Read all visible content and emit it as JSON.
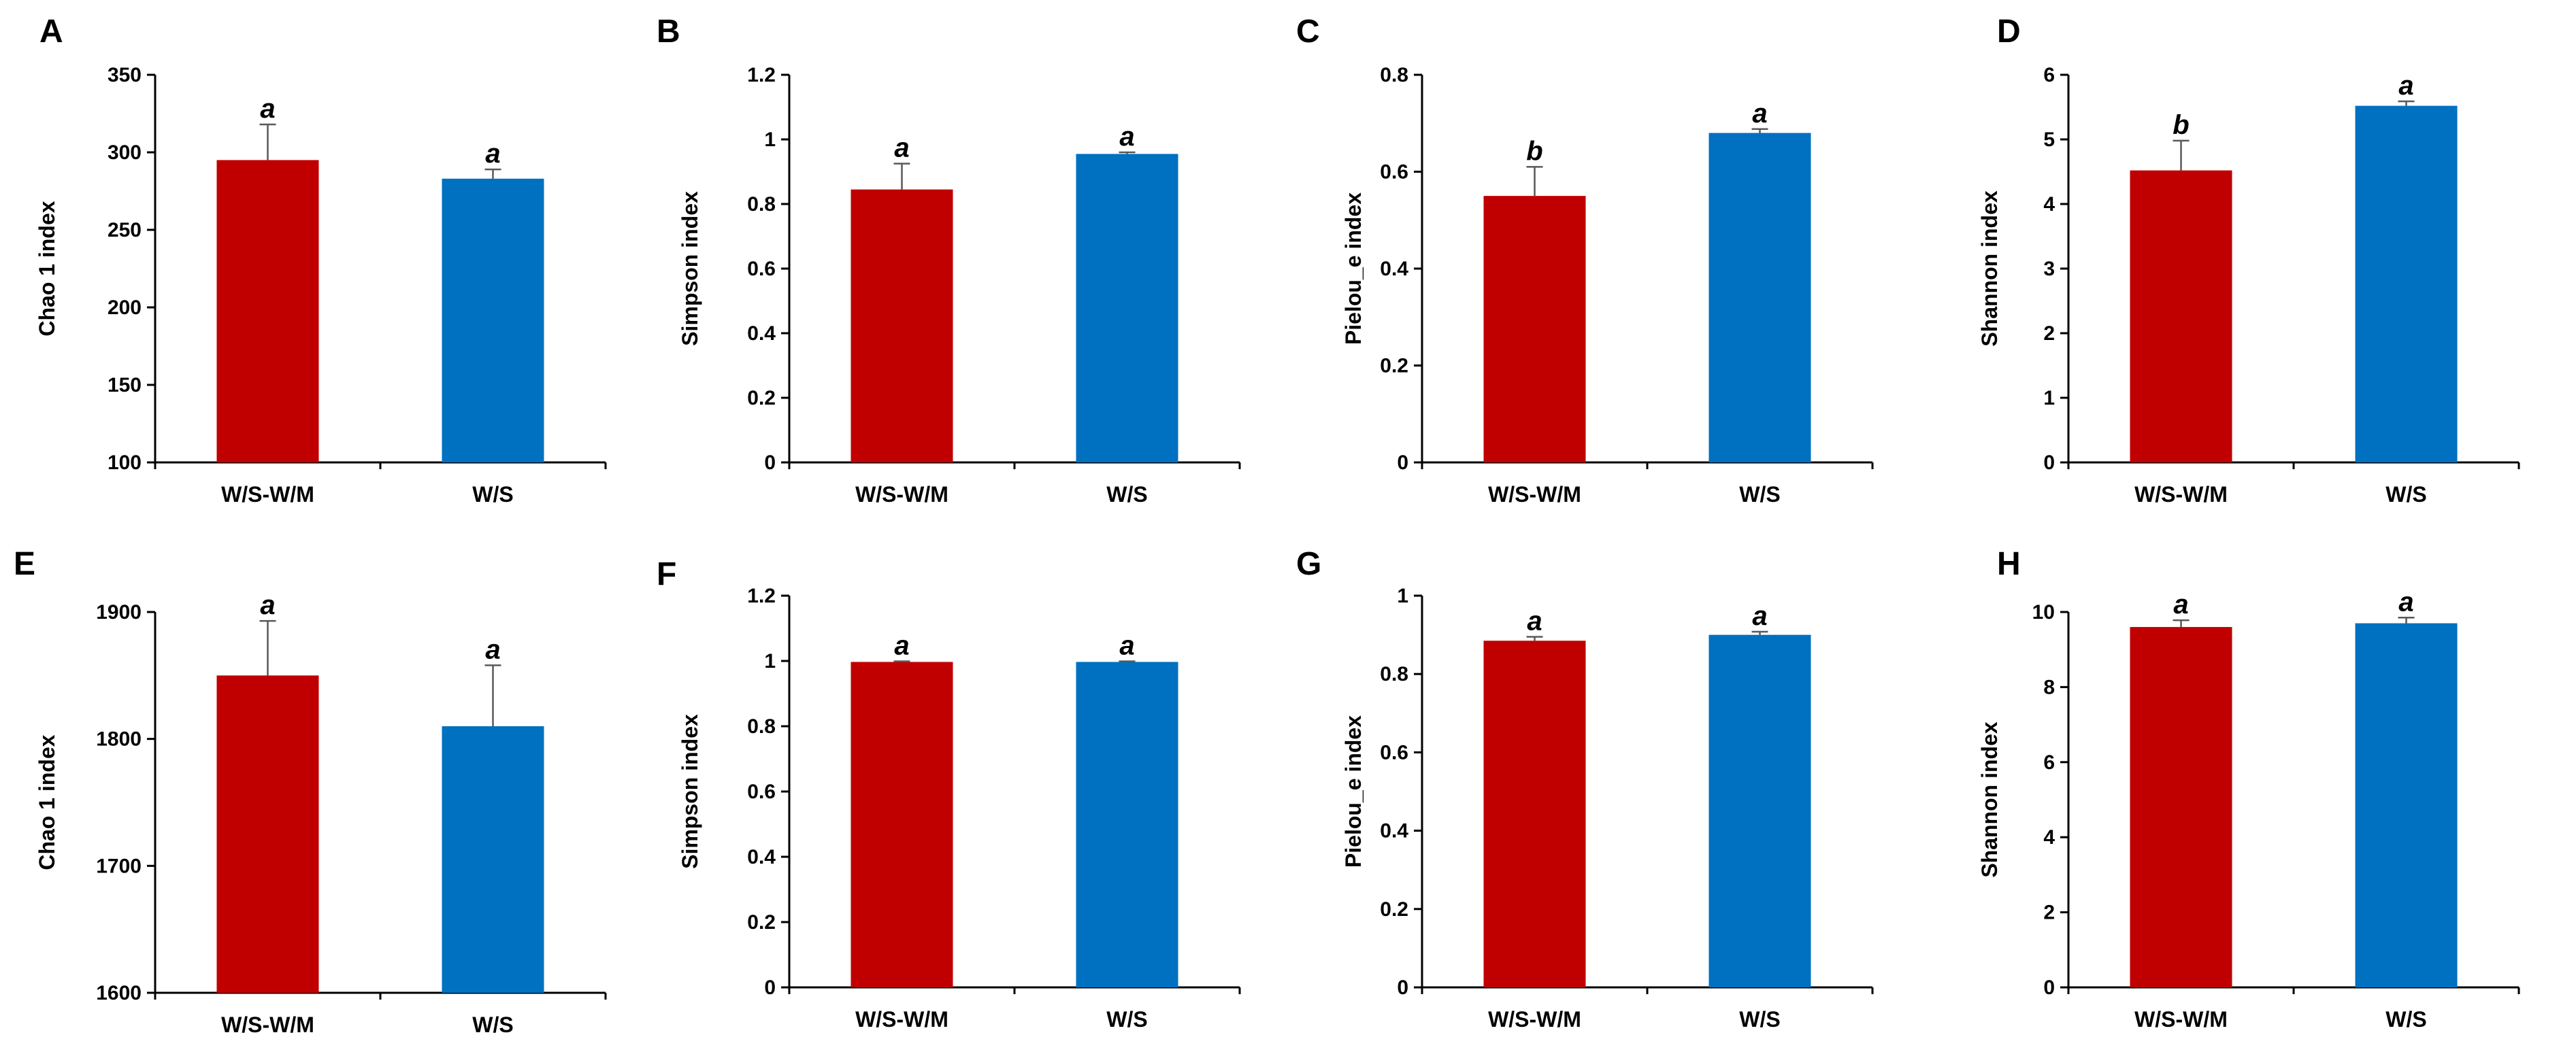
{
  "figure": {
    "colors": {
      "red": "#c00000",
      "blue": "#0070c0",
      "axis": "#000000",
      "error": "#595959"
    }
  },
  "chart_data": [
    {
      "panel": "A",
      "type": "bar",
      "ylabel": "Chao 1 index",
      "categories": [
        "W/S-W/M",
        "W/S"
      ],
      "values": [
        295,
        283
      ],
      "errors": [
        23,
        6
      ],
      "sig": [
        "a",
        "a"
      ],
      "ylim": [
        100,
        350
      ],
      "ticks": [
        100,
        150,
        200,
        250,
        300,
        350
      ],
      "tick_labels": [
        "100",
        "150",
        "200",
        "250",
        "300",
        "350"
      ]
    },
    {
      "panel": "B",
      "type": "bar",
      "ylabel": "Simpson index",
      "categories": [
        "W/S-W/M",
        "W/S"
      ],
      "values": [
        0.845,
        0.955
      ],
      "errors": [
        0.08,
        0.005
      ],
      "sig": [
        "a",
        "a"
      ],
      "ylim": [
        0,
        1.2
      ],
      "ticks": [
        0,
        0.2,
        0.4,
        0.6,
        0.8,
        1.0,
        1.2
      ],
      "tick_labels": [
        "0",
        "0.2",
        "0.4",
        "0.6",
        "0.8",
        "1",
        "1.2"
      ]
    },
    {
      "panel": "C",
      "type": "bar",
      "ylabel": "Pielou_e index",
      "categories": [
        "W/S-W/M",
        "W/S"
      ],
      "values": [
        0.55,
        0.68
      ],
      "errors": [
        0.06,
        0.008
      ],
      "sig": [
        "b",
        "a"
      ],
      "ylim": [
        0,
        0.8
      ],
      "ticks": [
        0,
        0.2,
        0.4,
        0.6,
        0.8
      ],
      "tick_labels": [
        "0",
        "0.2",
        "0.4",
        "0.6",
        "0.8"
      ]
    },
    {
      "panel": "D",
      "type": "bar",
      "ylabel": "Shannon index",
      "categories": [
        "W/S-W/M",
        "W/S"
      ],
      "values": [
        4.52,
        5.52
      ],
      "errors": [
        0.46,
        0.07
      ],
      "sig": [
        "b",
        "a"
      ],
      "ylim": [
        0,
        6
      ],
      "ticks": [
        0,
        1,
        2,
        3,
        4,
        5,
        6
      ],
      "tick_labels": [
        "0",
        "1",
        "2",
        "3",
        "4",
        "5",
        "6"
      ]
    },
    {
      "panel": "E",
      "type": "bar",
      "ylabel": "Chao 1 index",
      "categories": [
        "W/S-W/M",
        "W/S"
      ],
      "values": [
        1850,
        1810
      ],
      "errors": [
        43,
        48
      ],
      "sig": [
        "a",
        "a"
      ],
      "ylim": [
        1600,
        1900
      ],
      "ticks": [
        1600,
        1700,
        1800,
        1900
      ],
      "tick_labels": [
        "1600",
        "1700",
        "1800",
        "1900"
      ]
    },
    {
      "panel": "F",
      "type": "bar",
      "ylabel": "Simpson index",
      "categories": [
        "W/S-W/M",
        "W/S"
      ],
      "values": [
        0.997,
        0.997
      ],
      "errors": [
        0.002,
        0.002
      ],
      "sig": [
        "a",
        "a"
      ],
      "ylim": [
        0,
        1.2
      ],
      "ticks": [
        0,
        0.2,
        0.4,
        0.6,
        0.8,
        1.0,
        1.2
      ],
      "tick_labels": [
        "0",
        "0.2",
        "0.4",
        "0.6",
        "0.8",
        "1",
        "1.2"
      ]
    },
    {
      "panel": "G",
      "type": "bar",
      "ylabel": "Pielou_e index",
      "categories": [
        "W/S-W/M",
        "W/S"
      ],
      "values": [
        0.885,
        0.9
      ],
      "errors": [
        0.01,
        0.008
      ],
      "sig": [
        "a",
        "a"
      ],
      "ylim": [
        0,
        1
      ],
      "ticks": [
        0,
        0.2,
        0.4,
        0.6,
        0.8,
        1.0
      ],
      "tick_labels": [
        "0",
        "0.2",
        "0.4",
        "0.6",
        "0.8",
        "1"
      ]
    },
    {
      "panel": "H",
      "type": "bar",
      "ylabel": "Shannon index",
      "categories": [
        "W/S-W/M",
        "W/S"
      ],
      "values": [
        9.6,
        9.7
      ],
      "errors": [
        0.18,
        0.15
      ],
      "sig": [
        "a",
        "a"
      ],
      "ylim": [
        0,
        10
      ],
      "ticks": [
        0,
        2,
        4,
        6,
        8,
        10
      ],
      "tick_labels": [
        "0",
        "2",
        "4",
        "6",
        "8",
        "10"
      ]
    }
  ]
}
